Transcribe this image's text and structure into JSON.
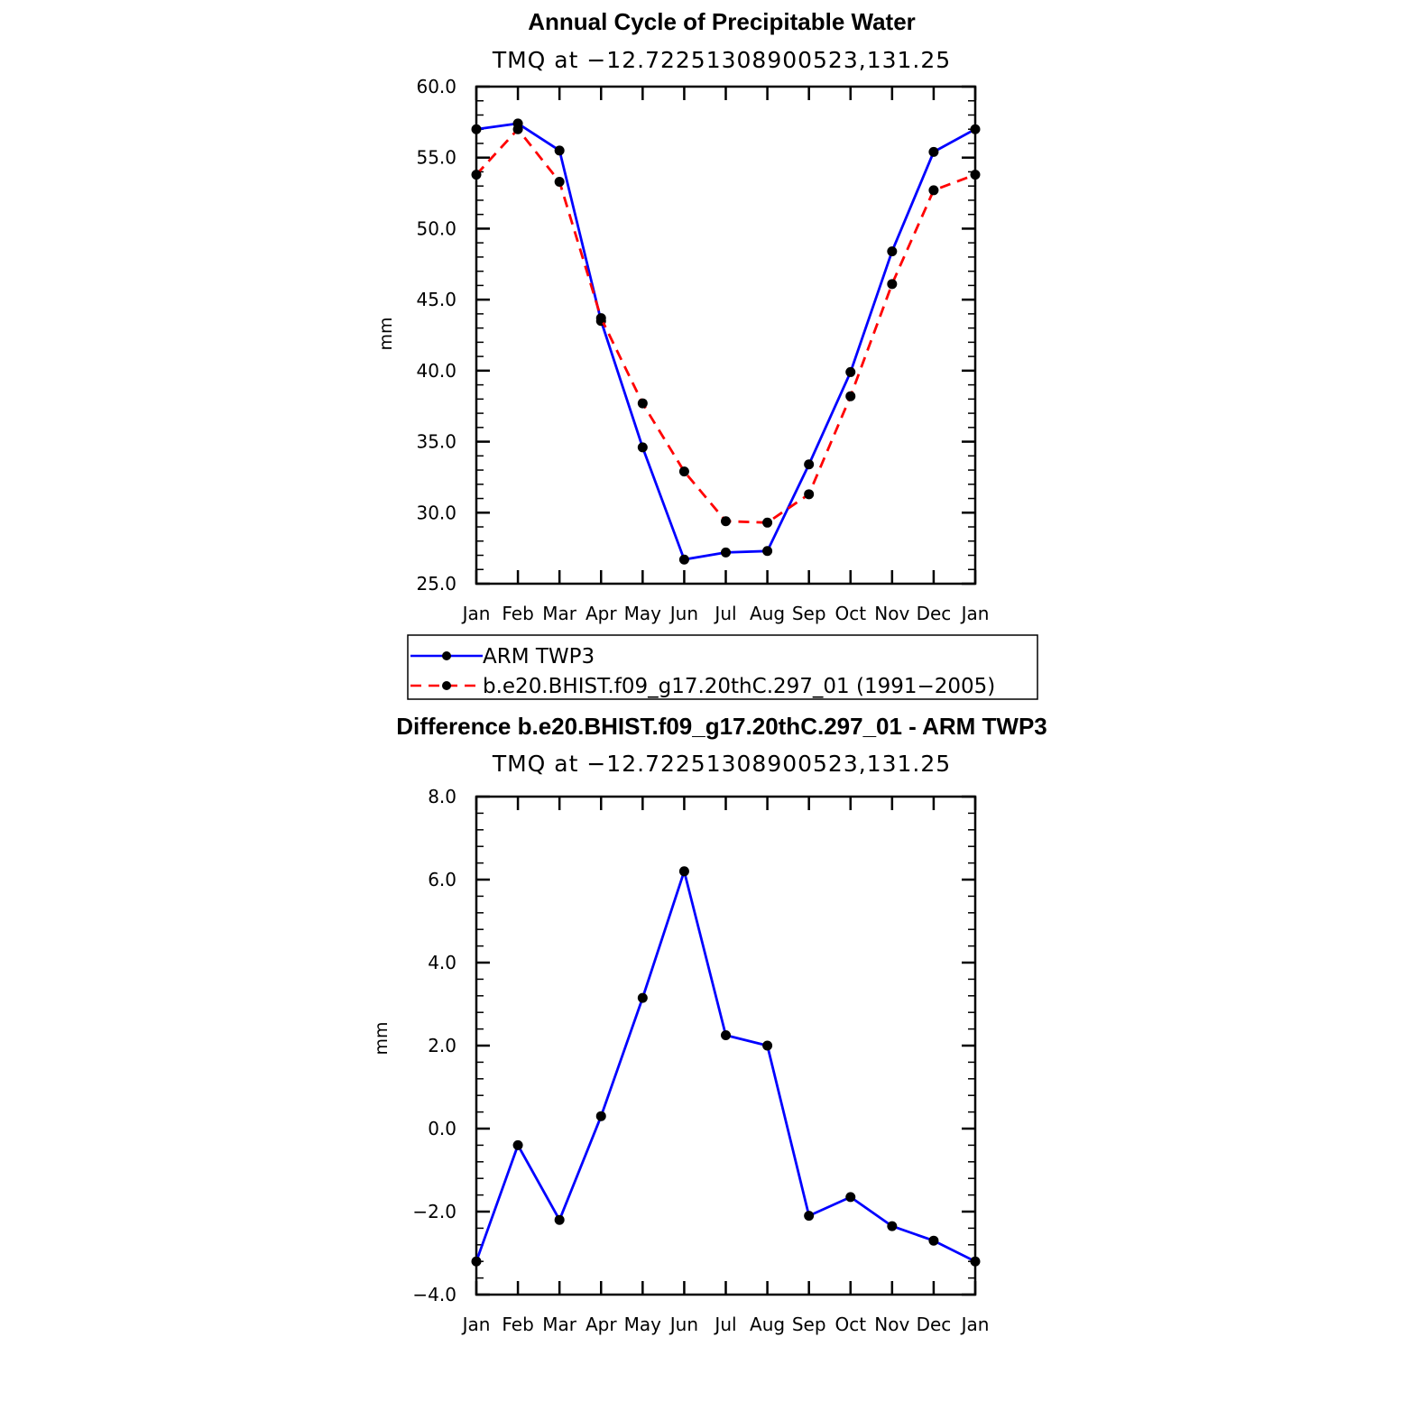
{
  "chart_data": [
    {
      "type": "line",
      "title": "Annual Cycle of Precipitable Water",
      "subtitle": "TMQ at −12.72251308900523,131.25",
      "xlabel": "",
      "ylabel": "mm",
      "categories": [
        "Jan",
        "Feb",
        "Mar",
        "Apr",
        "May",
        "Jun",
        "Jul",
        "Aug",
        "Sep",
        "Oct",
        "Nov",
        "Dec",
        "Jan"
      ],
      "ylim": [
        25.0,
        60.0
      ],
      "yticks": [
        25.0,
        30.0,
        35.0,
        40.0,
        45.0,
        50.0,
        55.0,
        60.0
      ],
      "ytick_labels": [
        "25.0",
        "30.0",
        "35.0",
        "40.0",
        "45.0",
        "50.0",
        "55.0",
        "60.0"
      ],
      "series": [
        {
          "name": "ARM TWP3",
          "color": "#0000ff",
          "dash": "solid",
          "values": [
            57.0,
            57.4,
            55.5,
            43.5,
            34.6,
            26.7,
            27.2,
            27.3,
            33.4,
            39.9,
            48.4,
            55.4,
            57.0
          ]
        },
        {
          "name": "b.e20.BHIST.f09_g17.20thC.297_01 (1991−2005)",
          "color": "#ff0000",
          "dash": "dashed",
          "values": [
            53.8,
            57.0,
            53.3,
            43.7,
            37.7,
            32.9,
            29.4,
            29.3,
            31.3,
            38.2,
            46.1,
            52.7,
            53.8
          ]
        }
      ],
      "legend": "bottom"
    },
    {
      "type": "line",
      "title": "Difference b.e20.BHIST.f09_g17.20thC.297_01 - ARM TWP3",
      "subtitle": "TMQ at −12.72251308900523,131.25",
      "xlabel": "",
      "ylabel": "mm",
      "categories": [
        "Jan",
        "Feb",
        "Mar",
        "Apr",
        "May",
        "Jun",
        "Jul",
        "Aug",
        "Sep",
        "Oct",
        "Nov",
        "Dec",
        "Jan"
      ],
      "ylim": [
        -4.0,
        8.0
      ],
      "yticks": [
        -4.0,
        -2.0,
        0.0,
        2.0,
        4.0,
        6.0,
        8.0
      ],
      "ytick_labels": [
        "−4.0",
        "−2.0",
        "0.0",
        "2.0",
        "4.0",
        "6.0",
        "8.0"
      ],
      "series": [
        {
          "name": "Difference",
          "color": "#0000ff",
          "dash": "solid",
          "values": [
            -3.2,
            -0.4,
            -2.2,
            0.3,
            3.15,
            6.2,
            2.25,
            2.0,
            -2.1,
            -1.65,
            -2.35,
            -2.7,
            -3.2
          ]
        }
      ]
    }
  ]
}
